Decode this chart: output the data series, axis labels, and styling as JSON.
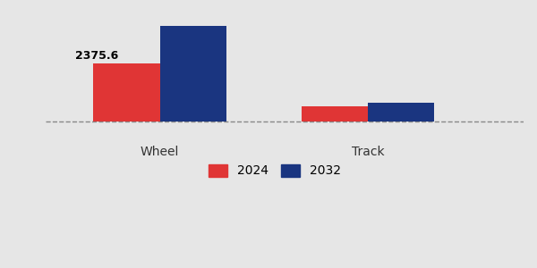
{
  "categories": [
    "Wheel",
    "Track"
  ],
  "values_2024": [
    2375.6,
    620
  ],
  "values_2032": [
    3900,
    780
  ],
  "color_2024": "#e03535",
  "color_2032": "#1a3580",
  "bar_width": 0.32,
  "label_2024": "2024",
  "label_2032": "2032",
  "annotation_wheel_2024": "2375.6",
  "background_color": "#e6e6e6",
  "ylim_min": -600,
  "ylim_max": 4400
}
